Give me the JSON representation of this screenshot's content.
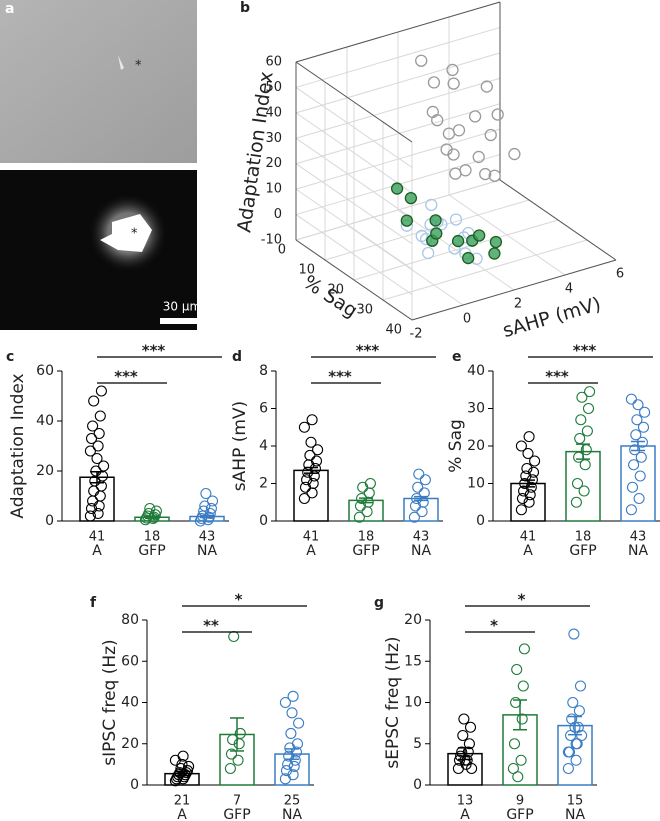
{
  "images": {
    "panel": "a",
    "top_marker": "*",
    "bottom_marker": "*",
    "scale_bar": "30 µm"
  },
  "chart_data": [
    {
      "type": "scatter3d",
      "panel": "b",
      "xlabel": "sAHP (mV)",
      "ylabel": "% Sag",
      "zlabel": "Adaptation Index",
      "xlim": [
        -2,
        6
      ],
      "xticks": [
        -2,
        0,
        2,
        4,
        6
      ],
      "ylim": [
        0,
        40
      ],
      "yticks": [
        0,
        10,
        20,
        30,
        40
      ],
      "zlim": [
        -10,
        60
      ],
      "zticks": [
        -10,
        0,
        10,
        20,
        30,
        40,
        50,
        60
      ],
      "series": [
        {
          "color": "#9a9a9a",
          "filled": false,
          "x": [
            2.5,
            3,
            2,
            3.5,
            2.8,
            4,
            3.2,
            2.2,
            4.5,
            3.8,
            2.6,
            5,
            3,
            4.2,
            2.4,
            3.6,
            5.2,
            2,
            2.7,
            4.8
          ],
          "y": [
            8,
            10,
            12,
            6,
            14,
            9,
            7,
            15,
            10,
            12,
            18,
            8,
            11,
            14,
            10,
            16,
            12,
            8,
            13,
            6
          ],
          "z": [
            45,
            50,
            38,
            40,
            30,
            28,
            22,
            25,
            20,
            15,
            18,
            25,
            10,
            8,
            32,
            12,
            12,
            55,
            20,
            35
          ]
        },
        {
          "color": "#a9c8e8",
          "filled": false,
          "x": [
            1,
            0.5,
            1.5,
            0.8,
            1.2,
            0,
            1.8,
            0.3,
            1,
            1.6,
            0.6,
            1.4,
            2,
            0.2,
            1.1
          ],
          "y": [
            20,
            25,
            18,
            30,
            22,
            28,
            26,
            18,
            32,
            15,
            22,
            28,
            20,
            24,
            35
          ],
          "z": [
            3,
            2,
            1,
            2,
            4,
            1,
            2,
            3,
            1,
            5,
            0,
            3,
            2,
            4,
            1
          ]
        },
        {
          "color": "#3aa05a",
          "filled": true,
          "x": [
            0.8,
            1.2,
            0.5,
            1.5,
            1,
            2,
            0.3,
            1.8,
            2.2,
            0.6,
            1.4,
            1
          ],
          "y": [
            15,
            20,
            25,
            30,
            22,
            28,
            18,
            35,
            32,
            12,
            26,
            33
          ],
          "z": [
            10,
            4,
            2,
            3,
            1,
            2,
            5,
            1,
            2,
            12,
            0,
            0
          ]
        }
      ]
    },
    {
      "type": "bar",
      "panel": "c",
      "ylabel": "Adaptation Index",
      "categories": [
        "A",
        "GFP",
        "NA"
      ],
      "counts": [
        41,
        18,
        43
      ],
      "values": [
        17.5,
        1.5,
        1.8
      ],
      "errors": [
        2.2,
        0.4,
        0.4
      ],
      "colors": [
        "#000000",
        "#1e7b3a",
        "#3a7cc4"
      ],
      "points": [
        [
          2,
          3,
          5,
          6,
          8,
          10,
          12,
          14,
          16,
          18,
          20,
          22,
          25,
          28,
          30,
          33,
          35,
          38,
          42,
          48,
          52
        ],
        [
          0.5,
          1,
          1.2,
          1.5,
          2,
          2.5,
          3,
          4,
          5
        ],
        [
          0,
          0.5,
          1,
          1.5,
          2,
          3,
          4,
          5,
          6,
          8,
          11
        ]
      ],
      "ylim": [
        0,
        60
      ],
      "yticks": [
        0,
        20,
        40,
        60
      ],
      "comparisons": [
        {
          "groups": [
            "A",
            "GFP"
          ],
          "label": "***"
        },
        {
          "groups": [
            "A",
            "NA"
          ],
          "label": "***"
        }
      ]
    },
    {
      "type": "bar",
      "panel": "d",
      "ylabel": "sAHP (mV)",
      "categories": [
        "A",
        "GFP",
        "NA"
      ],
      "counts": [
        41,
        18,
        43
      ],
      "values": [
        2.7,
        1.1,
        1.2
      ],
      "errors": [
        0.15,
        0.12,
        0.1
      ],
      "colors": [
        "#000000",
        "#1e7b3a",
        "#3a7cc4"
      ],
      "points": [
        [
          1.2,
          1.5,
          1.8,
          2,
          2.2,
          2.4,
          2.6,
          2.8,
          3,
          3.2,
          3.5,
          3.8,
          4.2,
          5,
          5.4
        ],
        [
          0.2,
          0.5,
          0.8,
          1,
          1.2,
          1.5,
          1.8,
          2
        ],
        [
          0.2,
          0.5,
          0.8,
          1,
          1.2,
          1.5,
          1.8,
          2.2,
          2.5
        ]
      ],
      "ylim": [
        0,
        8
      ],
      "yticks": [
        0,
        2,
        4,
        6,
        8
      ],
      "comparisons": [
        {
          "groups": [
            "A",
            "GFP"
          ],
          "label": "***"
        },
        {
          "groups": [
            "A",
            "NA"
          ],
          "label": "***"
        }
      ]
    },
    {
      "type": "bar",
      "panel": "e",
      "ylabel": "% Sag",
      "categories": [
        "A",
        "GFP",
        "NA"
      ],
      "counts": [
        41,
        18,
        43
      ],
      "values": [
        10,
        18.5,
        20
      ],
      "errors": [
        0.9,
        2,
        1.2
      ],
      "colors": [
        "#000000",
        "#1e7b3a",
        "#3a7cc4"
      ],
      "points": [
        [
          3,
          5,
          6,
          7,
          8,
          9,
          10,
          11,
          12,
          13,
          14,
          16,
          18,
          20,
          22.5
        ],
        [
          5,
          8,
          10,
          15,
          17,
          19,
          22,
          24,
          27,
          30,
          33,
          34.5
        ],
        [
          3,
          6,
          9,
          12,
          15,
          17,
          19,
          21,
          23,
          25,
          27,
          29,
          31,
          32.5
        ]
      ],
      "ylim": [
        0,
        40
      ],
      "yticks": [
        0,
        10,
        20,
        30,
        40
      ],
      "comparisons": [
        {
          "groups": [
            "A",
            "GFP"
          ],
          "label": "***"
        },
        {
          "groups": [
            "A",
            "NA"
          ],
          "label": "***"
        }
      ]
    },
    {
      "type": "bar",
      "panel": "f",
      "ylabel": "sIPSC freq (Hz)",
      "categories": [
        "A",
        "GFP",
        "NA"
      ],
      "counts": [
        21,
        7,
        25
      ],
      "values": [
        5.5,
        24.5,
        15
      ],
      "errors": [
        1,
        8,
        2.5
      ],
      "colors": [
        "#000000",
        "#1e7b3a",
        "#3a7cc4"
      ],
      "points": [
        [
          2,
          3,
          3,
          4,
          4,
          5,
          5,
          6,
          6,
          7,
          8,
          9,
          10,
          12,
          14
        ],
        [
          8,
          12,
          15,
          20,
          22,
          25,
          72
        ],
        [
          3,
          5,
          7,
          9,
          10,
          12,
          14,
          16,
          18,
          20,
          25,
          30,
          35,
          40,
          43
        ]
      ],
      "ylim": [
        0,
        80
      ],
      "yticks": [
        0,
        20,
        40,
        60,
        80
      ],
      "comparisons": [
        {
          "groups": [
            "A",
            "GFP"
          ],
          "label": "**"
        },
        {
          "groups": [
            "A",
            "NA"
          ],
          "label": "*"
        }
      ]
    },
    {
      "type": "bar",
      "panel": "g",
      "ylabel": "sEPSC freq (Hz)",
      "categories": [
        "A",
        "GFP",
        "NA"
      ],
      "counts": [
        13,
        9,
        15
      ],
      "values": [
        3.8,
        8.5,
        7.2
      ],
      "errors": [
        0.7,
        1.8,
        1.1
      ],
      "colors": [
        "#000000",
        "#1e7b3a",
        "#3a7cc4"
      ],
      "points": [
        [
          2,
          2.5,
          3,
          3,
          3.5,
          4,
          4,
          5,
          6,
          7,
          8,
          2,
          3
        ],
        [
          2,
          3,
          5,
          8,
          10,
          12,
          14,
          16.5,
          1
        ],
        [
          2,
          3,
          4,
          5,
          6,
          7,
          8,
          9,
          10,
          12,
          18.3,
          6,
          7,
          4,
          5
        ]
      ],
      "ylim": [
        0,
        20
      ],
      "yticks": [
        0,
        5,
        10,
        15,
        20
      ],
      "comparisons": [
        {
          "groups": [
            "A",
            "GFP"
          ],
          "label": "*"
        },
        {
          "groups": [
            "A",
            "NA"
          ],
          "label": "*"
        }
      ]
    }
  ]
}
